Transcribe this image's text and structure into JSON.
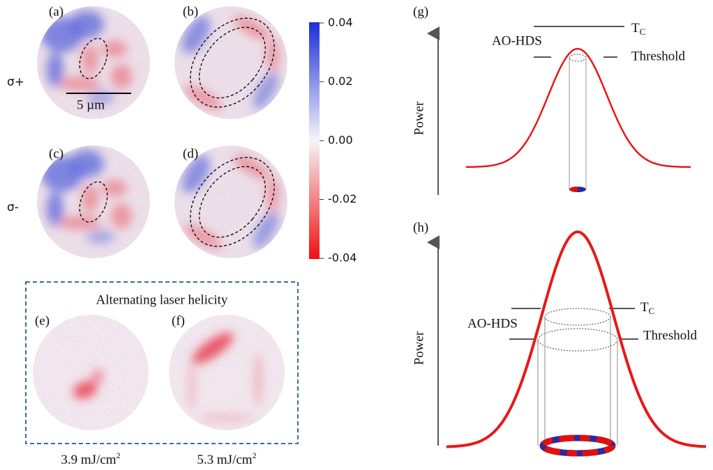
{
  "panels": {
    "a": "(a)",
    "b": "(b)",
    "c": "(c)",
    "d": "(d)",
    "e": "(e)",
    "f": "(f)",
    "g": "(g)",
    "h": "(h)"
  },
  "rows": {
    "top": "σ+",
    "bottom": "σ-"
  },
  "scale_bar": "5 µm",
  "colorbar": {
    "lim": [
      -0.04,
      0.04
    ],
    "ticks": [
      {
        "value": 0.04,
        "label": "0.04"
      },
      {
        "value": 0.02,
        "label": "0.02"
      },
      {
        "value": 0,
        "label": "0.00"
      },
      {
        "value": -0.02,
        "label": "-0.02"
      },
      {
        "value": -0.04,
        "label": "-0.04"
      }
    ]
  },
  "box_title": "Alternating laser helicity",
  "fluences": [
    {
      "text": "3.9 mJ/cm",
      "sup": "2"
    },
    {
      "text": "5.3 mJ/cm",
      "sup": "2"
    }
  ],
  "diagram_g": {
    "axis": "Power",
    "tc": {
      "text": "T",
      "sub": "C"
    },
    "aohds": "AO-HDS",
    "threshold": "Threshold"
  },
  "diagram_h": {
    "axis": "Power",
    "tc": {
      "text": "T",
      "sub": "C"
    },
    "aohds": "AO-HDS",
    "threshold": "Threshold"
  }
}
